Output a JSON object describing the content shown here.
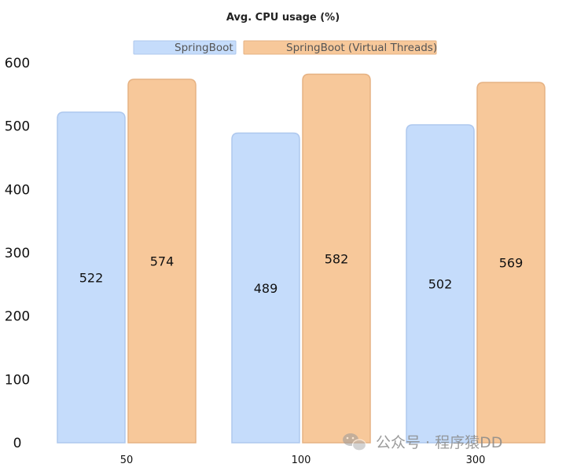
{
  "chart_data": {
    "type": "bar",
    "title": "Avg. CPU usage (%)",
    "xlabel": "",
    "ylabel": "",
    "categories": [
      "50",
      "100",
      "300"
    ],
    "ylim": [
      0,
      600
    ],
    "yticks": [
      0,
      100,
      200,
      300,
      400,
      500,
      600
    ],
    "grid": false,
    "legend_position": "top-center",
    "series": [
      {
        "name": "SpringBoot",
        "values": [
          522,
          489,
          502
        ],
        "fill": "#c5dcfb",
        "stroke": "#aec8ee"
      },
      {
        "name": "SpringBoot (Virtual Threads)",
        "values": [
          574,
          582,
          569
        ],
        "fill": "#f7c89a",
        "stroke": "#e6b283"
      }
    ]
  },
  "watermark": {
    "text": "公众号 · 程序猿DD",
    "icon": "wechat-icon"
  }
}
